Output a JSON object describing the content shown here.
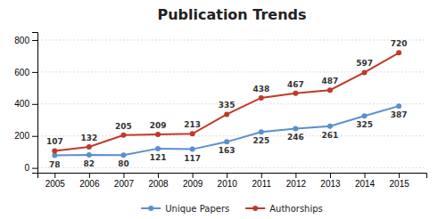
{
  "chart_data": {
    "type": "line",
    "title": "Publication Trends",
    "x": [
      2005,
      2006,
      2007,
      2008,
      2009,
      2010,
      2011,
      2012,
      2013,
      2014,
      2015
    ],
    "xlim": [
      2004.5,
      2015.8
    ],
    "xticks": [
      2005,
      2006,
      2007,
      2008,
      2009,
      2010,
      2011,
      2012,
      2013,
      2014,
      2015
    ],
    "ylim": [
      -30,
      850
    ],
    "yticks": [
      0,
      200,
      400,
      600,
      800
    ],
    "grid": true,
    "legend": "bottom",
    "data_labels": true,
    "marker": "circle",
    "series": [
      {
        "name": "Unique Papers",
        "color": "#5b8fce",
        "values": [
          78,
          82,
          80,
          121,
          117,
          163,
          225,
          246,
          261,
          325,
          387
        ]
      },
      {
        "name": "Authorships",
        "color": "#c0392b",
        "values": [
          107,
          132,
          205,
          209,
          213,
          335,
          438,
          467,
          487,
          597,
          720
        ]
      }
    ]
  }
}
